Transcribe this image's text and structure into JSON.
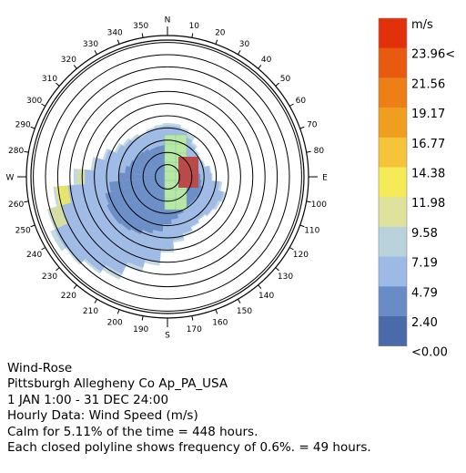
{
  "chart_data": {
    "type": "wind-rose",
    "direction_labels": [
      {
        "deg": 0,
        "text": "N"
      },
      {
        "deg": 10,
        "text": "10"
      },
      {
        "deg": 20,
        "text": "20"
      },
      {
        "deg": 30,
        "text": "30"
      },
      {
        "deg": 40,
        "text": "40"
      },
      {
        "deg": 50,
        "text": "50"
      },
      {
        "deg": 60,
        "text": "60"
      },
      {
        "deg": 70,
        "text": "70"
      },
      {
        "deg": 80,
        "text": "80"
      },
      {
        "deg": 90,
        "text": "E"
      },
      {
        "deg": 100,
        "text": "100"
      },
      {
        "deg": 110,
        "text": "110"
      },
      {
        "deg": 120,
        "text": "120"
      },
      {
        "deg": 130,
        "text": "130"
      },
      {
        "deg": 140,
        "text": "140"
      },
      {
        "deg": 150,
        "text": "150"
      },
      {
        "deg": 160,
        "text": "160"
      },
      {
        "deg": 170,
        "text": "170"
      },
      {
        "deg": 180,
        "text": "S"
      },
      {
        "deg": 190,
        "text": "190"
      },
      {
        "deg": 200,
        "text": "200"
      },
      {
        "deg": 210,
        "text": "210"
      },
      {
        "deg": 220,
        "text": "220"
      },
      {
        "deg": 230,
        "text": "230"
      },
      {
        "deg": 240,
        "text": "240"
      },
      {
        "deg": 250,
        "text": "250"
      },
      {
        "deg": 260,
        "text": "260"
      },
      {
        "deg": 270,
        "text": "W"
      },
      {
        "deg": 280,
        "text": "280"
      },
      {
        "deg": 290,
        "text": "290"
      },
      {
        "deg": 300,
        "text": "300"
      },
      {
        "deg": 310,
        "text": "310"
      },
      {
        "deg": 320,
        "text": "320"
      },
      {
        "deg": 330,
        "text": "330"
      },
      {
        "deg": 340,
        "text": "340"
      },
      {
        "deg": 350,
        "text": "350"
      }
    ],
    "frequency_ring_step_pct": 0.6,
    "frequency_ring_count": 11,
    "speed_bins": [
      {
        "label": "<0.00",
        "color": "#4a6aaa"
      },
      {
        "label": "2.40",
        "color": "#6a8cc6"
      },
      {
        "label": "4.79",
        "color": "#9db9e6"
      },
      {
        "label": "7.19",
        "color": "#b9d2dc"
      },
      {
        "label": "9.58",
        "color": "#dfe29a"
      },
      {
        "label": "11.98",
        "color": "#f5ea57"
      },
      {
        "label": "14.38",
        "color": "#f6c43a"
      },
      {
        "label": "16.77",
        "color": "#ef9e20"
      },
      {
        "label": "19.17",
        "color": "#ec8016"
      },
      {
        "label": "21.56",
        "color": "#e85a10"
      },
      {
        "label": "23.96<",
        "color": "#e2300a"
      }
    ],
    "legend_unit": "m/s",
    "directions": [
      {
        "deg": 0,
        "rings": [
          2.7,
          4.2,
          4.4
        ]
      },
      {
        "deg": 10,
        "rings": [
          2.8,
          4.2,
          4.4
        ]
      },
      {
        "deg": 20,
        "rings": [
          2.6,
          3.9,
          4.2
        ]
      },
      {
        "deg": 30,
        "rings": [
          2.4,
          3.6,
          4.0
        ]
      },
      {
        "deg": 40,
        "rings": [
          2.2,
          3.3,
          3.5
        ]
      },
      {
        "deg": 50,
        "rings": [
          2.2,
          3.0,
          3.2
        ]
      },
      {
        "deg": 60,
        "rings": [
          2.3,
          3.0,
          3.1
        ]
      },
      {
        "deg": 70,
        "rings": [
          2.4,
          3.1,
          3.2
        ]
      },
      {
        "deg": 80,
        "rings": [
          2.6,
          3.5,
          3.6
        ]
      },
      {
        "deg": 90,
        "rings": [
          2.7,
          3.6,
          3.7
        ]
      },
      {
        "deg": 100,
        "rings": [
          2.8,
          4.3,
          4.5
        ]
      },
      {
        "deg": 110,
        "rings": [
          3.0,
          4.8,
          5.0
        ]
      },
      {
        "deg": 120,
        "rings": [
          3.0,
          4.6,
          4.8
        ]
      },
      {
        "deg": 130,
        "rings": [
          2.9,
          4.5,
          4.6
        ]
      },
      {
        "deg": 140,
        "rings": [
          2.9,
          4.3,
          4.4
        ]
      },
      {
        "deg": 150,
        "rings": [
          3.0,
          4.5,
          4.6
        ]
      },
      {
        "deg": 160,
        "rings": [
          3.2,
          4.8,
          5.0
        ]
      },
      {
        "deg": 170,
        "rings": [
          3.5,
          5.2,
          5.4
        ]
      },
      {
        "deg": 180,
        "rings": [
          3.9,
          5.9,
          6.2
        ]
      },
      {
        "deg": 190,
        "rings": [
          4.5,
          7.0,
          7.3
        ]
      },
      {
        "deg": 200,
        "rings": [
          4.8,
          7.7,
          8.1
        ]
      },
      {
        "deg": 210,
        "rings": [
          5.2,
          8.8,
          9.3
        ]
      },
      {
        "deg": 220,
        "rings": [
          5.4,
          9.5,
          9.7
        ]
      },
      {
        "deg": 230,
        "rings": [
          5.5,
          10.0,
          10.2
        ]
      },
      {
        "deg": 240,
        "rings": [
          5.5,
          10.2,
          10.6
        ]
      },
      {
        "deg": 250,
        "rings": [
          5.3,
          9.9,
          10.2
        ]
      },
      {
        "deg": 260,
        "rings": [
          4.8,
          8.8,
          9.4
        ]
      },
      {
        "deg": 270,
        "rings": [
          4.0,
          7.3,
          7.7
        ]
      },
      {
        "deg": 280,
        "rings": [
          3.5,
          6.0,
          6.3
        ]
      },
      {
        "deg": 290,
        "rings": [
          3.2,
          5.3,
          5.5
        ]
      },
      {
        "deg": 300,
        "rings": [
          3.0,
          4.6,
          4.8
        ]
      },
      {
        "deg": 310,
        "rings": [
          2.9,
          4.3,
          4.5
        ]
      },
      {
        "deg": 320,
        "rings": [
          2.8,
          4.1,
          4.3
        ]
      },
      {
        "deg": 330,
        "rings": [
          2.6,
          3.9,
          4.1
        ]
      },
      {
        "deg": 340,
        "rings": [
          2.6,
          4.0,
          4.2
        ]
      },
      {
        "deg": 350,
        "rings": [
          2.6,
          4.1,
          4.3
        ]
      }
    ],
    "overlay_markers": [
      {
        "name": "green-block",
        "color": "#b8e8a8"
      },
      {
        "name": "red-block",
        "color": "#b94a4a"
      }
    ]
  },
  "caption": {
    "line1": "Wind-Rose",
    "line2": "Pittsburgh Allegheny Co Ap_PA_USA",
    "line3": "1 JAN 1:00 - 31 DEC 24:00",
    "line4": "Hourly Data: Wind Speed (m/s)",
    "line5": "Calm for 5.11% of the time = 448 hours.",
    "line6": "Each closed polyline shows frequency of 0.6%. = 49 hours."
  }
}
